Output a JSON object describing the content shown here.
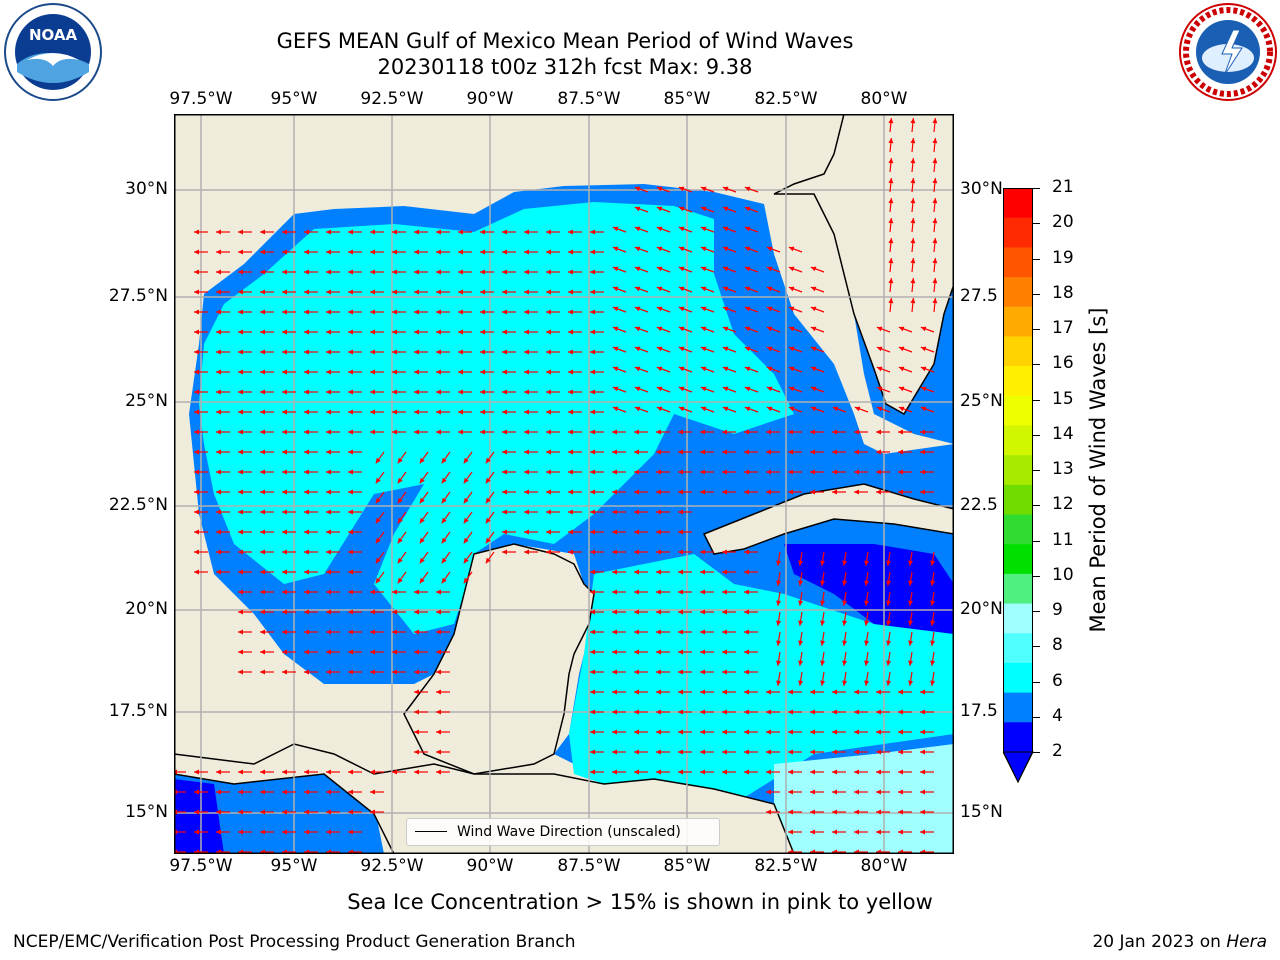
{
  "title": {
    "line1": "GEFS MEAN Gulf of Mexico Mean Period of Wind Waves",
    "line2": "20230118 t00z 312h fcst   Max: 9.38"
  },
  "logos": {
    "left": "NOAA logo",
    "right": "National Weather Service logo"
  },
  "map": {
    "x_ticks": [
      "97.5°W",
      "95°W",
      "92.5°W",
      "90°W",
      "87.5°W",
      "85°W",
      "82.5°W",
      "80°W"
    ],
    "y_ticks_left": [
      "30°N",
      "27.5°N",
      "25°N",
      "22.5°N",
      "20°N",
      "17.5°N",
      "15°N"
    ],
    "y_ticks_right": [
      "30°N",
      "27.5",
      "25°N",
      "22.5",
      "20°N",
      "17.5",
      "15°N"
    ],
    "legend_label": "Wind Wave Direction (unscaled)",
    "land_color": "#efecdc",
    "arrow_color": "#ff0000"
  },
  "colorbar": {
    "label": "Mean Period of Wind Waves [s]",
    "ticks": [
      "21",
      "20",
      "19",
      "18",
      "17",
      "16",
      "15",
      "14",
      "13",
      "12",
      "11",
      "10",
      "9",
      "8",
      "6",
      "4",
      "2"
    ],
    "colors": [
      "#ff0000",
      "#ff2a00",
      "#ff5500",
      "#ff8000",
      "#ffaa00",
      "#ffd200",
      "#fff000",
      "#f0ff00",
      "#d2f500",
      "#a8eb00",
      "#70dc00",
      "#30dc30",
      "#00e000",
      "#50f080",
      "#a0ffff",
      "#50ffff",
      "#00ffff",
      "#0080ff",
      "#0000ff"
    ]
  },
  "subtitle": "Sea Ice Concentration > 15% is shown in pink to yellow",
  "footer": {
    "left": "NCEP/EMC/Verification Post Processing Product Generation Branch",
    "right_date": "20 Jan 2023 on ",
    "right_machine": "Hera"
  }
}
